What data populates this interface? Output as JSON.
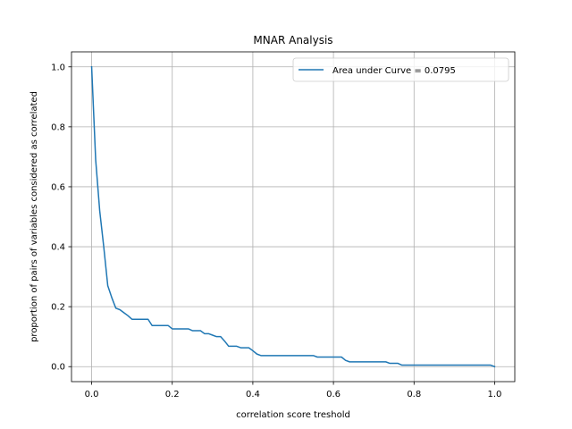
{
  "chart_data": {
    "type": "line",
    "title": "MNAR Analysis",
    "xlabel": "correlation score treshold",
    "ylabel": "proportion of pairs of variables considered as correlated",
    "xlim": [
      -0.05,
      1.05
    ],
    "ylim": [
      -0.05,
      1.05
    ],
    "x_ticks": [
      0.0,
      0.2,
      0.4,
      0.6,
      0.8,
      1.0
    ],
    "x_tick_labels": [
      "0.0",
      "0.2",
      "0.4",
      "0.6",
      "0.8",
      "1.0"
    ],
    "y_ticks": [
      0.0,
      0.2,
      0.4,
      0.6,
      0.8,
      1.0
    ],
    "y_tick_labels": [
      "0.0",
      "0.2",
      "0.4",
      "0.6",
      "0.8",
      "1.0"
    ],
    "grid": true,
    "legend_position": "top-right",
    "series": [
      {
        "name": "Area under Curve = 0.0795",
        "color": "#1f77b4",
        "x": [
          0.0,
          0.01,
          0.02,
          0.03,
          0.04,
          0.05,
          0.06,
          0.07,
          0.08,
          0.09,
          0.1,
          0.11,
          0.12,
          0.13,
          0.14,
          0.15,
          0.16,
          0.17,
          0.18,
          0.19,
          0.2,
          0.21,
          0.22,
          0.23,
          0.24,
          0.25,
          0.26,
          0.27,
          0.28,
          0.29,
          0.3,
          0.31,
          0.32,
          0.33,
          0.34,
          0.35,
          0.36,
          0.37,
          0.38,
          0.39,
          0.4,
          0.41,
          0.42,
          0.43,
          0.44,
          0.45,
          0.46,
          0.47,
          0.48,
          0.49,
          0.5,
          0.51,
          0.52,
          0.53,
          0.54,
          0.55,
          0.56,
          0.57,
          0.58,
          0.59,
          0.6,
          0.61,
          0.62,
          0.63,
          0.64,
          0.65,
          0.66,
          0.67,
          0.68,
          0.69,
          0.7,
          0.71,
          0.72,
          0.73,
          0.74,
          0.75,
          0.76,
          0.77,
          0.78,
          0.79,
          0.8,
          0.81,
          0.82,
          0.83,
          0.84,
          0.85,
          0.86,
          0.87,
          0.88,
          0.89,
          0.9,
          0.91,
          0.92,
          0.93,
          0.94,
          0.95,
          0.96,
          0.97,
          0.98,
          0.99,
          1.0
        ],
        "y": [
          1.0,
          0.69,
          0.52,
          0.4,
          0.27,
          0.23,
          0.195,
          0.19,
          0.18,
          0.17,
          0.158,
          0.158,
          0.158,
          0.158,
          0.158,
          0.137,
          0.137,
          0.137,
          0.137,
          0.137,
          0.126,
          0.126,
          0.126,
          0.126,
          0.126,
          0.12,
          0.12,
          0.12,
          0.11,
          0.11,
          0.105,
          0.1,
          0.1,
          0.085,
          0.068,
          0.068,
          0.068,
          0.063,
          0.063,
          0.063,
          0.053,
          0.042,
          0.037,
          0.037,
          0.037,
          0.037,
          0.037,
          0.037,
          0.037,
          0.037,
          0.037,
          0.037,
          0.037,
          0.037,
          0.037,
          0.037,
          0.032,
          0.032,
          0.032,
          0.032,
          0.032,
          0.032,
          0.032,
          0.021,
          0.016,
          0.016,
          0.016,
          0.016,
          0.016,
          0.016,
          0.016,
          0.016,
          0.016,
          0.016,
          0.011,
          0.011,
          0.011,
          0.005,
          0.005,
          0.005,
          0.005,
          0.005,
          0.005,
          0.005,
          0.005,
          0.005,
          0.005,
          0.005,
          0.005,
          0.005,
          0.005,
          0.005,
          0.005,
          0.005,
          0.005,
          0.005,
          0.005,
          0.005,
          0.005,
          0.005,
          0.0
        ]
      }
    ]
  }
}
